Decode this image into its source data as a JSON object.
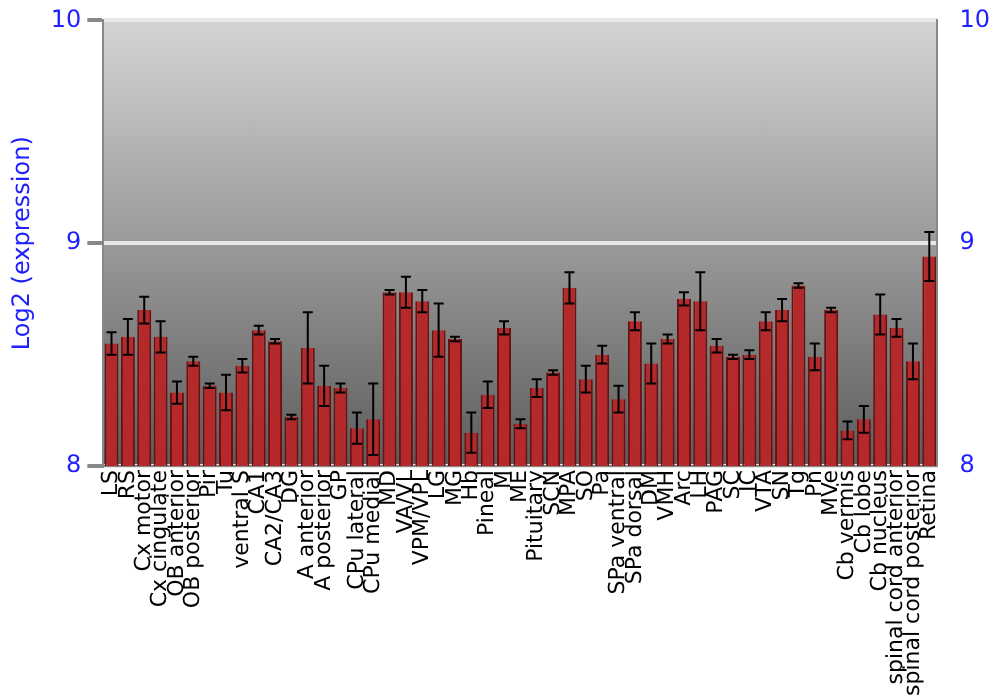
{
  "chart_data": {
    "type": "bar",
    "ylabel": "Log2 (expression)",
    "categories": [
      "LS",
      "RS",
      "Cx motor",
      "Cx cingulate",
      "OB anterior",
      "OB posterior",
      "Pir",
      "Tu",
      "ventral S",
      "CA1",
      "CA2/CA3",
      "DG",
      "A anterior",
      "A posterior",
      "GP",
      "CPu lateral",
      "CPu medial",
      "MD",
      "VA/VL",
      "VPM/VPL",
      "LG",
      "MG",
      "Hb",
      "Pineal",
      "M",
      "ME",
      "Pituitary",
      "SCN",
      "MPA",
      "SO",
      "Pa",
      "SPa ventral",
      "SPa dorsal",
      "DM",
      "VMH",
      "Arc",
      "LH",
      "PAG",
      "SC",
      "IC",
      "VTA",
      "SN",
      "Tg",
      "Pn",
      "MVe",
      "Cb vermis",
      "Cb lobe",
      "Cb nucleus",
      "spinal cord anterior",
      "spinal cord posterior",
      "Retina"
    ],
    "values": [
      8.55,
      8.58,
      8.7,
      8.58,
      8.33,
      8.47,
      8.36,
      8.33,
      8.45,
      8.61,
      8.56,
      8.22,
      8.53,
      8.36,
      8.35,
      8.17,
      8.21,
      8.78,
      8.78,
      8.74,
      8.61,
      8.57,
      8.15,
      8.32,
      8.62,
      8.19,
      8.35,
      8.42,
      8.8,
      8.39,
      8.5,
      8.3,
      8.65,
      8.46,
      8.57,
      8.75,
      8.74,
      8.54,
      8.49,
      8.5,
      8.65,
      8.7,
      8.81,
      8.49,
      8.7,
      8.16,
      8.21,
      8.68,
      8.62,
      8.47,
      8.94
    ],
    "errors": [
      0.05,
      0.08,
      0.06,
      0.07,
      0.05,
      0.02,
      0.01,
      0.08,
      0.03,
      0.02,
      0.01,
      0.01,
      0.16,
      0.09,
      0.02,
      0.07,
      0.16,
      0.01,
      0.07,
      0.05,
      0.12,
      0.01,
      0.09,
      0.06,
      0.03,
      0.02,
      0.04,
      0.01,
      0.07,
      0.06,
      0.04,
      0.06,
      0.04,
      0.09,
      0.02,
      0.03,
      0.13,
      0.03,
      0.01,
      0.02,
      0.04,
      0.05,
      0.01,
      0.06,
      0.01,
      0.04,
      0.06,
      0.09,
      0.04,
      0.08,
      0.11
    ],
    "color": "#b5292b",
    "ylim": [
      8,
      10
    ],
    "yticks": [
      8,
      9,
      10
    ],
    "y2lim": [
      8,
      10
    ],
    "y2ticks": [
      8,
      9,
      10
    ],
    "grid": "y",
    "legend": false
  }
}
